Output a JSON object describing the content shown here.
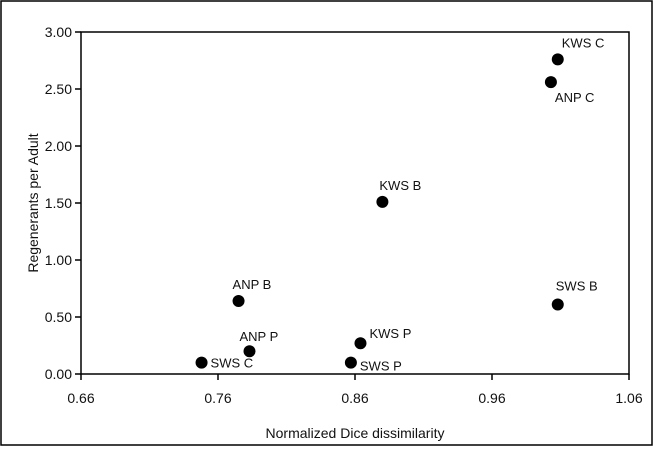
{
  "chart_data": {
    "type": "scatter",
    "title": "",
    "xlabel": "Normalized Dice dissimilarity",
    "ylabel": "Regenerants per Adult",
    "xlim": [
      0.66,
      1.06
    ],
    "ylim": [
      0.0,
      3.0
    ],
    "x_ticks": [
      "0.66",
      "0.76",
      "0.86",
      "0.96",
      "1.06"
    ],
    "y_ticks": [
      "0.00",
      "0.50",
      "1.00",
      "1.50",
      "2.00",
      "2.50",
      "3.00"
    ],
    "grid": false,
    "legend": "none",
    "marker_color": "#000000",
    "points": [
      {
        "label": "KWS C",
        "x": 1.008,
        "y": 2.76
      },
      {
        "label": "ANP C",
        "x": 1.003,
        "y": 2.56
      },
      {
        "label": "KWS B",
        "x": 0.88,
        "y": 1.51
      },
      {
        "label": "ANP B",
        "x": 0.775,
        "y": 0.64
      },
      {
        "label": "SWS B",
        "x": 1.008,
        "y": 0.61
      },
      {
        "label": "KWS P",
        "x": 0.864,
        "y": 0.27
      },
      {
        "label": "ANP P",
        "x": 0.783,
        "y": 0.2
      },
      {
        "label": "SWS C",
        "x": 0.748,
        "y": 0.1
      },
      {
        "label": "SWS P",
        "x": 0.857,
        "y": 0.1
      }
    ]
  }
}
